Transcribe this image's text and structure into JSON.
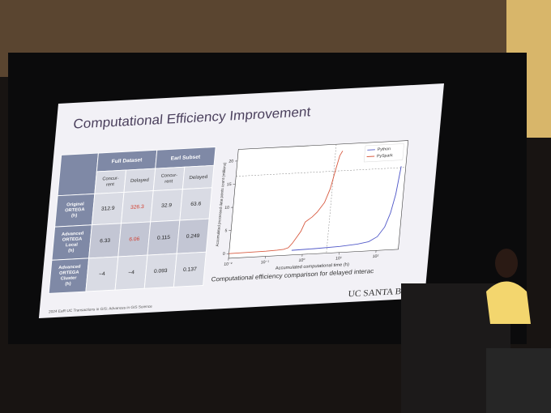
{
  "slide": {
    "title": "Computational Efficiency Improvement",
    "footer": "2024 EaR UC Transactions in GIS: Advances in GIS Science",
    "logo": "UC SANTA BA",
    "caption": "Computational efficiency comparison for delayed interac"
  },
  "table": {
    "header": [
      "Full Dataset",
      "Earl Subset"
    ],
    "subheader": [
      "Concur-rent",
      "Delayed",
      "Concur-rent",
      "Delayed"
    ],
    "rows": [
      [
        "Original ORTEGA (h)",
        "312.9",
        "326.3",
        "32.9",
        "63.6"
      ],
      [
        "Advanced ORTEGA Local (h)",
        "6.33",
        "6.06",
        "0.115",
        "0.249"
      ],
      [
        "Advanced ORTEGA Cluster (h)",
        "~4",
        "~4",
        "0.093",
        "0.137"
      ]
    ]
  },
  "chart_data": {
    "type": "line",
    "x_log": true,
    "x_label": "Accumulated computational time (h)",
    "y_label": "Accumulated processed data points count (millions)",
    "xlim": [
      0.01,
      400
    ],
    "ylim": [
      -1,
      22.5
    ],
    "xticks": [
      {
        "value": 0.01,
        "label": "10⁻²"
      },
      {
        "value": 0.1,
        "label": "10⁻¹"
      },
      {
        "value": 1,
        "label": "10⁰"
      },
      {
        "value": 10,
        "label": "10¹"
      },
      {
        "value": 100,
        "label": "10²"
      }
    ],
    "yticks": [
      0,
      5,
      10,
      15,
      20
    ],
    "legend": "upper right",
    "reference_lines": {
      "x": 4.5,
      "y": 16.7
    },
    "series": [
      {
        "name": "Python",
        "color": "#5058c8",
        "x": [
          0.5,
          2,
          10,
          30,
          60,
          100,
          150,
          200,
          250,
          300
        ],
        "values": [
          0,
          0.1,
          0.3,
          0.6,
          1,
          2,
          4,
          7,
          11,
          17
        ]
      },
      {
        "name": "PySpark",
        "color": "#d85a40",
        "x": [
          0.01,
          0.1,
          0.2,
          0.3,
          0.4,
          0.5,
          0.8,
          1,
          1.5,
          2,
          3,
          4,
          5,
          6,
          7
        ],
        "values": [
          0,
          0.1,
          0.2,
          0.3,
          0.6,
          1.5,
          4,
          6,
          7,
          8,
          10,
          13,
          17,
          20,
          21
        ]
      }
    ]
  }
}
